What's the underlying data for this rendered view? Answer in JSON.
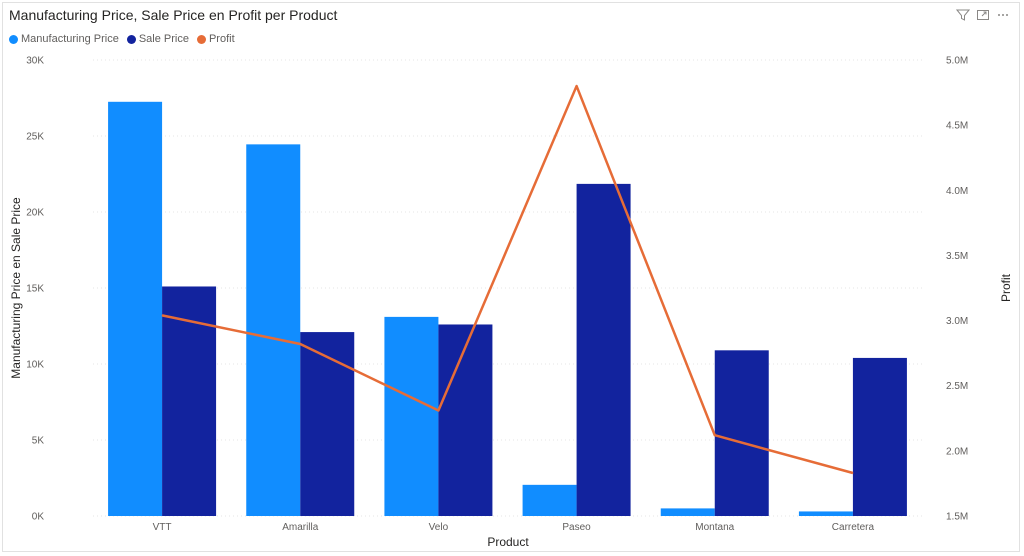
{
  "visual": {
    "title": "Manufacturing Price, Sale Price en Profit per Product"
  },
  "toolbar_icons": [
    "filter-icon",
    "focus-mode-icon",
    "more-options-icon"
  ],
  "legend": [
    {
      "label": "Manufacturing Price",
      "color": "#118dff"
    },
    {
      "label": "Sale Price",
      "color": "#12239e"
    },
    {
      "label": "Profit",
      "color": "#e66c37"
    }
  ],
  "chart_data": {
    "type": "bar",
    "title": "Manufacturing Price, Sale Price en Profit per Product",
    "xlabel": "Product",
    "ylabel": "Manufacturing Price en Sale Price",
    "y2label": "Profit",
    "categories": [
      "VTT",
      "Amarilla",
      "Velo",
      "Paseo",
      "Montana",
      "Carretera"
    ],
    "ylim": [
      0,
      30000
    ],
    "y2lim": [
      1500000,
      5000000
    ],
    "yticks": [
      "0K",
      "5K",
      "10K",
      "15K",
      "20K",
      "25K",
      "30K"
    ],
    "y2ticks": [
      "1.5M",
      "2.0M",
      "2.5M",
      "3.0M",
      "3.5M",
      "4.0M",
      "4.5M",
      "5.0M"
    ],
    "grid": true,
    "legend_position": "top-left",
    "series": [
      {
        "name": "Manufacturing Price",
        "type": "bar",
        "axis": "left",
        "color": "#118dff",
        "values": [
          27250,
          24450,
          13100,
          2050,
          500,
          300
        ]
      },
      {
        "name": "Sale Price",
        "type": "bar",
        "axis": "left",
        "color": "#12239e",
        "values": [
          15100,
          12100,
          12600,
          21850,
          10900,
          10400
        ]
      },
      {
        "name": "Profit",
        "type": "line",
        "axis": "right",
        "color": "#e66c37",
        "values": [
          3040000,
          2820000,
          2310000,
          4800000,
          2120000,
          1830000
        ]
      }
    ]
  }
}
